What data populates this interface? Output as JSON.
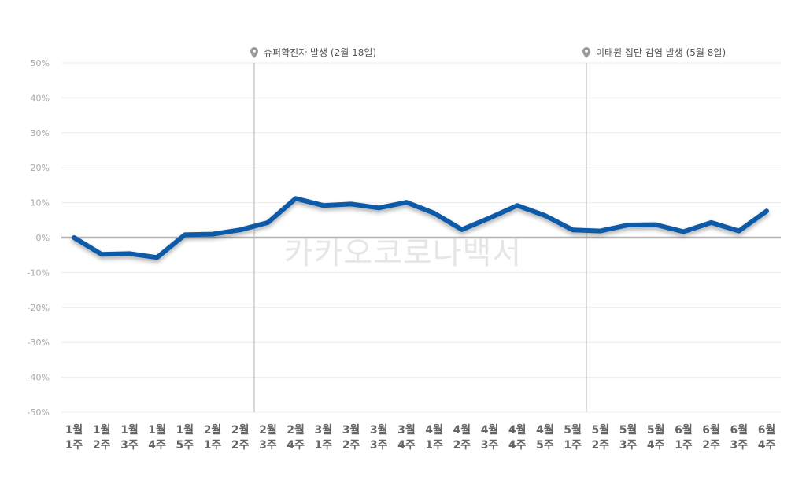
{
  "chart_data": {
    "type": "line",
    "ylim": [
      -50,
      50
    ],
    "yticks": [
      50,
      40,
      30,
      20,
      10,
      0,
      -10,
      -20,
      -30,
      -40,
      -50
    ],
    "ytick_labels": [
      "50%",
      "40%",
      "30%",
      "20%",
      "10%",
      "0%",
      "-10%",
      "-20%",
      "-30%",
      "-40%",
      "-50%"
    ],
    "categories": [
      [
        "1월",
        "1주"
      ],
      [
        "1월",
        "2주"
      ],
      [
        "1월",
        "3주"
      ],
      [
        "1월",
        "4주"
      ],
      [
        "1월",
        "5주"
      ],
      [
        "2월",
        "1주"
      ],
      [
        "2월",
        "2주"
      ],
      [
        "2월",
        "3주"
      ],
      [
        "2월",
        "4주"
      ],
      [
        "3월",
        "1주"
      ],
      [
        "3월",
        "2주"
      ],
      [
        "3월",
        "3주"
      ],
      [
        "3월",
        "4주"
      ],
      [
        "4월",
        "1주"
      ],
      [
        "4월",
        "2주"
      ],
      [
        "4월",
        "3주"
      ],
      [
        "4월",
        "4주"
      ],
      [
        "4월",
        "5주"
      ],
      [
        "5월",
        "1주"
      ],
      [
        "5월",
        "2주"
      ],
      [
        "5월",
        "3주"
      ],
      [
        "5월",
        "4주"
      ],
      [
        "6월",
        "1주"
      ],
      [
        "6월",
        "2주"
      ],
      [
        "6월",
        "3주"
      ],
      [
        "6월",
        "4주"
      ]
    ],
    "series": [
      {
        "values": [
          0.0,
          -4.8,
          -4.6,
          -5.7,
          0.8,
          1.0,
          2.2,
          4.3,
          11.2,
          9.2,
          9.6,
          8.5,
          10.1,
          7.0,
          2.3,
          5.6,
          9.2,
          6.3,
          2.2,
          1.9,
          3.6,
          3.7,
          1.7,
          4.3,
          1.9,
          7.6
        ],
        "color": "#0a5aa8"
      }
    ],
    "annotations": [
      {
        "label": "슈퍼확진자 발생 (2월 18일)",
        "category_index": 7
      },
      {
        "label": "이태원 집단 감염 발생 (5월 8일)",
        "category_index": 18
      }
    ],
    "grid": true,
    "watermark": "카카오코로나백서"
  }
}
